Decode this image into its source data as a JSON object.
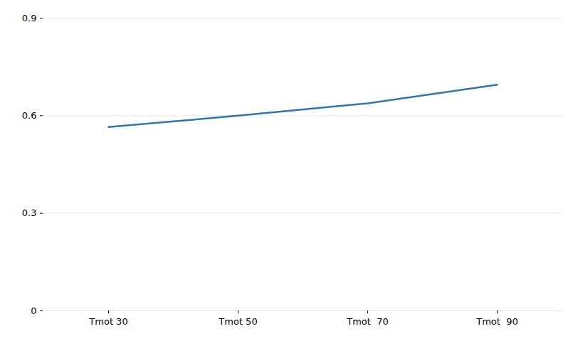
{
  "chart_data": {
    "type": "line",
    "categories": [
      "Tmot 30",
      "Tmot 50",
      "Tmot  70",
      "Tmot  90"
    ],
    "values": [
      0.565,
      0.6,
      0.638,
      0.695
    ],
    "color": "#2e75b6",
    "ylim": [
      0,
      0.9
    ],
    "yticks": [
      0,
      0.3,
      0.6,
      0.9
    ],
    "grid": true
  }
}
